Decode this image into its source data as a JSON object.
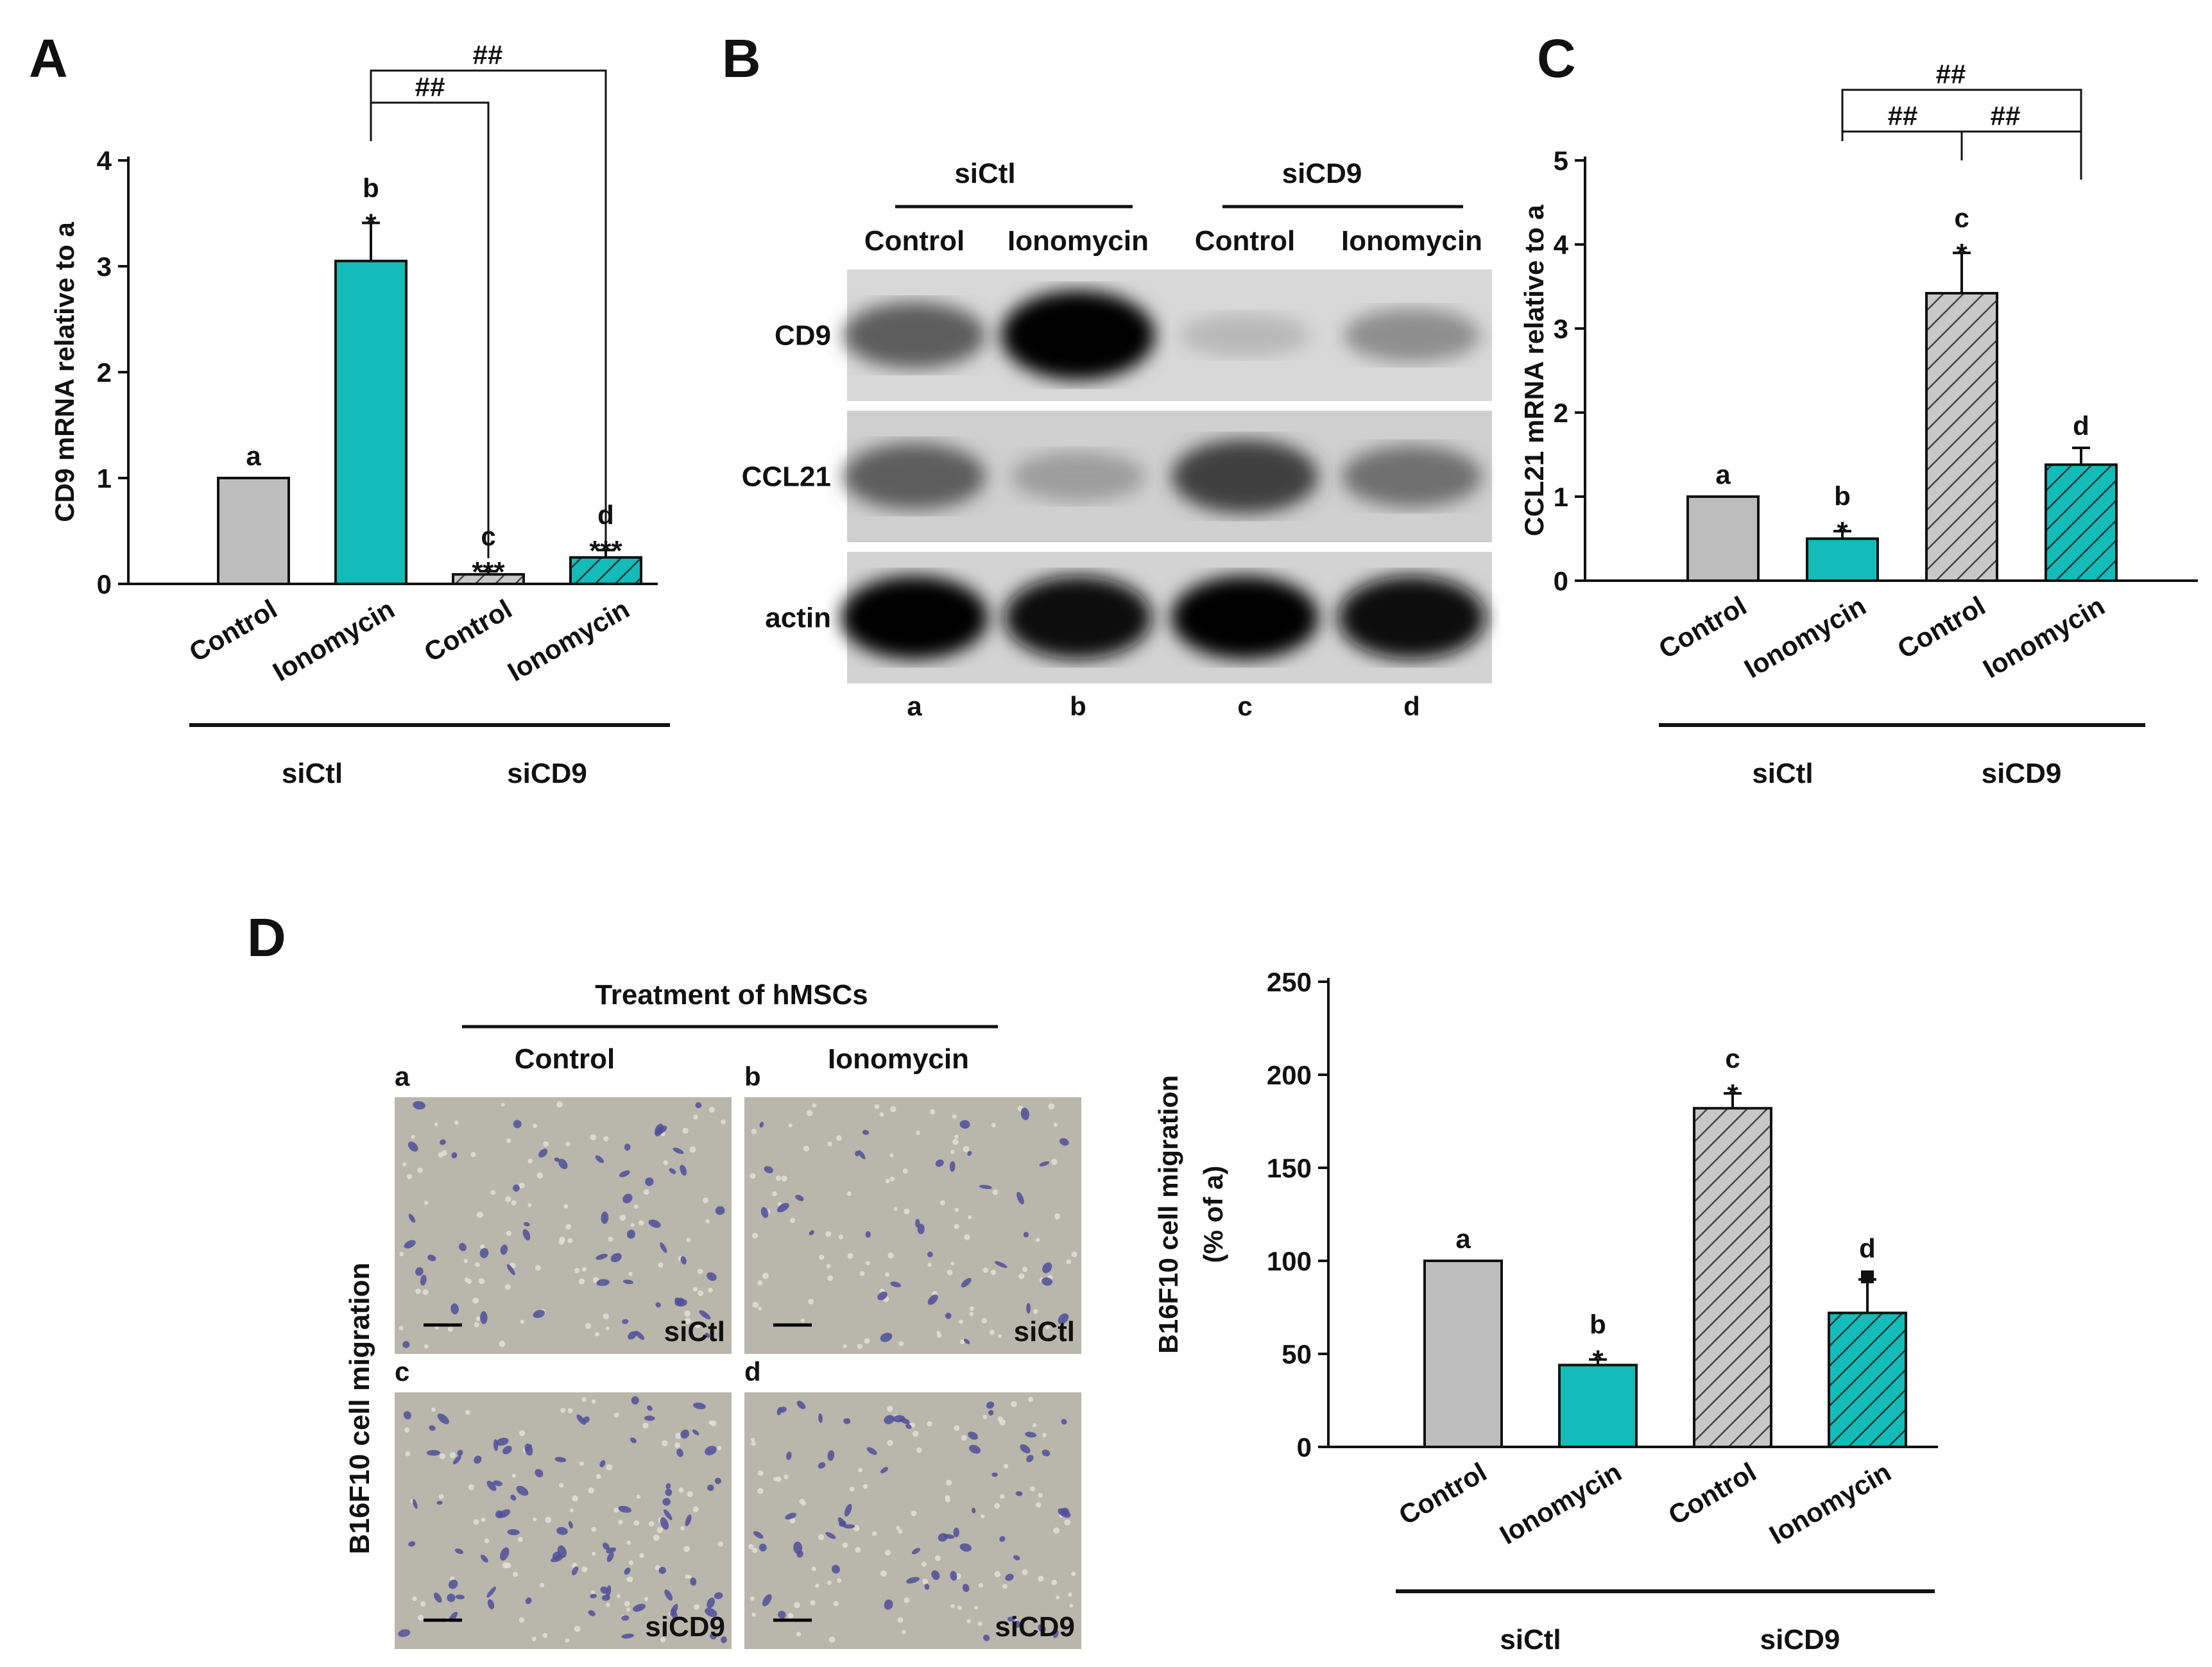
{
  "colors": {
    "control_gray": "#bdbdbd",
    "teal": "#13bcb8",
    "hatch_gray": "#c8c8c8",
    "axis": "#111111",
    "micrograph_bg": "#b9b6ab",
    "micrograph_cell": "#4f4f9a"
  },
  "panels": {
    "A": {
      "letter": "A"
    },
    "B": {
      "letter": "B"
    },
    "C": {
      "letter": "C"
    },
    "D": {
      "letter": "D"
    }
  },
  "chart_data": [
    {
      "id": "A",
      "type": "bar",
      "ylabel": "CD9 mRNA relative to a",
      "ylim": [
        0,
        4
      ],
      "yticks": [
        "0",
        "1",
        "2",
        "3",
        "4"
      ],
      "categories": [
        "Control",
        "Ionomycin",
        "Control",
        "Ionomycin"
      ],
      "groups": [
        {
          "label": "siCtl",
          "span": [
            0,
            1
          ]
        },
        {
          "label": "siCD9",
          "span": [
            2,
            3
          ]
        }
      ],
      "values": [
        1.0,
        3.05,
        0.09,
        0.25
      ],
      "errors": [
        0.0,
        0.36,
        0.03,
        0.07
      ],
      "styles": [
        "gray",
        "teal",
        "hatch-gray",
        "hatch-teal"
      ],
      "letters": [
        "a",
        "b",
        "c",
        "d"
      ],
      "stars": [
        "",
        "*",
        "***",
        "***"
      ],
      "brackets": [
        {
          "from": 1,
          "to": 2,
          "label": "##"
        },
        {
          "from": 1,
          "to": 3,
          "label": "##"
        }
      ]
    },
    {
      "id": "C",
      "type": "bar",
      "ylabel": "CCL21 mRNA relative to a",
      "ylim": [
        0,
        5
      ],
      "yticks": [
        "0",
        "1",
        "2",
        "3",
        "4",
        "5"
      ],
      "categories": [
        "Control",
        "Ionomycin",
        "Control",
        "Ionomycin"
      ],
      "groups": [
        {
          "label": "siCtl",
          "span": [
            0,
            1
          ]
        },
        {
          "label": "siCD9",
          "span": [
            2,
            3
          ]
        }
      ],
      "values": [
        1.0,
        0.5,
        3.42,
        1.38
      ],
      "errors": [
        0.0,
        0.09,
        0.48,
        0.2
      ],
      "styles": [
        "gray",
        "teal",
        "hatch-gray",
        "hatch-teal"
      ],
      "letters": [
        "a",
        "b",
        "c",
        "d"
      ],
      "stars": [
        "",
        "*",
        "*",
        ""
      ],
      "brackets": [
        {
          "from": 1,
          "to": 2,
          "label": "##"
        },
        {
          "from": 2,
          "to": 3,
          "label": "##"
        },
        {
          "from": 1,
          "to": 3,
          "label": "##"
        }
      ]
    },
    {
      "id": "D",
      "type": "bar",
      "ylabel": "B16F10 cell migration",
      "ylabel2": "(% of a)",
      "ylim": [
        0,
        250
      ],
      "yticks": [
        "0",
        "50",
        "100",
        "150",
        "200",
        "250"
      ],
      "categories": [
        "Control",
        "Ionomycin",
        "Control",
        "Ionomycin"
      ],
      "groups": [
        {
          "label": "siCtl",
          "span": [
            0,
            1
          ]
        },
        {
          "label": "siCD9",
          "span": [
            2,
            3
          ]
        }
      ],
      "values": [
        100,
        44,
        182,
        72
      ],
      "errors": [
        0,
        3,
        8,
        18
      ],
      "styles": [
        "gray",
        "teal",
        "hatch-gray",
        "hatch-teal"
      ],
      "letters": [
        "a",
        "b",
        "c",
        "d"
      ],
      "stars": [
        "",
        "*",
        "*",
        "■"
      ],
      "brackets": []
    }
  ],
  "blot": {
    "group_labels": [
      "siCtl",
      "siCD9"
    ],
    "lane_labels": [
      "Control",
      "Ionomycin",
      "Control",
      "Ionomycin"
    ],
    "rows": [
      {
        "label": "CD9",
        "intensities": [
          0.55,
          1.0,
          0.08,
          0.3
        ]
      },
      {
        "label": "CCL21",
        "intensities": [
          0.55,
          0.22,
          0.7,
          0.45
        ]
      },
      {
        "label": "actin",
        "intensities": [
          1.0,
          0.95,
          1.0,
          0.98
        ]
      }
    ],
    "lane_letters": [
      "a",
      "b",
      "c",
      "d"
    ]
  },
  "micrographs": {
    "header": "Treatment of hMSCs",
    "col_labels": [
      "Control",
      "Ionomycin"
    ],
    "row_title": "B16F10 cell migration",
    "cells": [
      {
        "letter": "a",
        "tag": "siCtl",
        "density": 55
      },
      {
        "letter": "b",
        "tag": "siCtl",
        "density": 35
      },
      {
        "letter": "c",
        "tag": "siCD9",
        "density": 85
      },
      {
        "letter": "d",
        "tag": "siCD9",
        "density": 60
      }
    ]
  }
}
